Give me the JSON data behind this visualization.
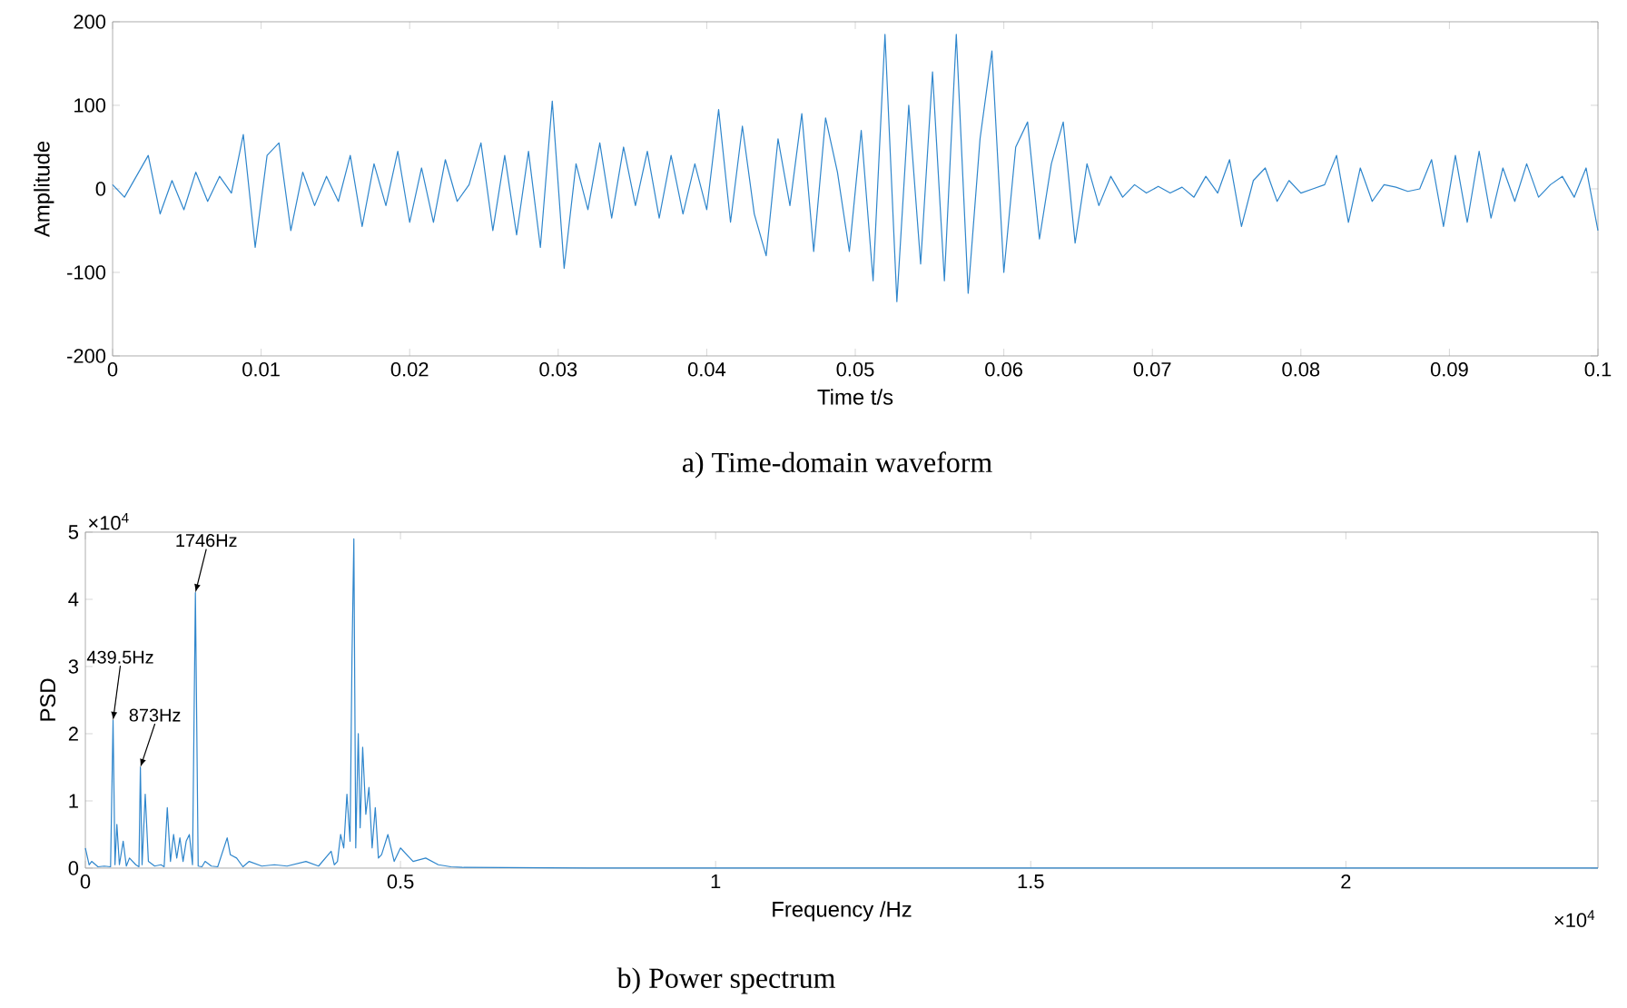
{
  "chart_data": [
    {
      "type": "line",
      "title": "a) Time-domain waveform",
      "xlabel": "Time t/s",
      "ylabel": "Amplitude",
      "color": "#2f86cc",
      "xlim": [
        0,
        0.1
      ],
      "ylim": [
        -200,
        200
      ],
      "xticks": [
        0,
        0.01,
        0.02,
        0.03,
        0.04,
        0.05,
        0.06,
        0.07,
        0.08,
        0.09,
        0.1
      ],
      "yticks": [
        -200,
        -100,
        0,
        100,
        200
      ],
      "x": [
        0,
        0.0008,
        0.0016,
        0.0024,
        0.0032,
        0.004,
        0.0048,
        0.0056,
        0.0064,
        0.0072,
        0.008,
        0.0088,
        0.0096,
        0.0104,
        0.0112,
        0.012,
        0.0128,
        0.0136,
        0.0144,
        0.0152,
        0.016,
        0.0168,
        0.0176,
        0.0184,
        0.0192,
        0.02,
        0.0208,
        0.0216,
        0.0224,
        0.0232,
        0.024,
        0.0248,
        0.0256,
        0.0264,
        0.0272,
        0.028,
        0.0288,
        0.0296,
        0.0304,
        0.0312,
        0.032,
        0.0328,
        0.0336,
        0.0344,
        0.0352,
        0.036,
        0.0368,
        0.0376,
        0.0384,
        0.0392,
        0.04,
        0.0408,
        0.0416,
        0.0424,
        0.0432,
        0.044,
        0.0448,
        0.0456,
        0.0464,
        0.0472,
        0.048,
        0.0488,
        0.0496,
        0.0504,
        0.0512,
        0.052,
        0.0528,
        0.0536,
        0.0544,
        0.0552,
        0.056,
        0.0568,
        0.0576,
        0.0584,
        0.0592,
        0.06,
        0.0608,
        0.0616,
        0.0624,
        0.0632,
        0.064,
        0.0648,
        0.0656,
        0.0664,
        0.0672,
        0.068,
        0.0688,
        0.0696,
        0.0704,
        0.0712,
        0.072,
        0.0728,
        0.0736,
        0.0744,
        0.0752,
        0.076,
        0.0768,
        0.0776,
        0.0784,
        0.0792,
        0.08,
        0.0808,
        0.0816,
        0.0824,
        0.0832,
        0.084,
        0.0848,
        0.0856,
        0.0864,
        0.0872,
        0.088,
        0.0888,
        0.0896,
        0.0904,
        0.0912,
        0.092,
        0.0928,
        0.0936,
        0.0944,
        0.0952,
        0.096,
        0.0968,
        0.0976,
        0.0984,
        0.0992,
        0.1
      ],
      "values": [
        5,
        -10,
        15,
        40,
        -30,
        10,
        -25,
        20,
        -15,
        15,
        -5,
        65,
        -70,
        40,
        55,
        -50,
        20,
        -20,
        15,
        -15,
        40,
        -45,
        30,
        -20,
        45,
        -40,
        25,
        -40,
        35,
        -15,
        5,
        55,
        -50,
        40,
        -55,
        45,
        -70,
        105,
        -95,
        30,
        -25,
        55,
        -35,
        50,
        -20,
        45,
        -35,
        40,
        -30,
        30,
        -25,
        95,
        -40,
        75,
        -30,
        -80,
        60,
        -20,
        90,
        -75,
        85,
        20,
        -75,
        70,
        -110,
        185,
        -135,
        100,
        -90,
        140,
        -110,
        185,
        -125,
        60,
        165,
        -100,
        50,
        80,
        -60,
        30,
        80,
        -65,
        30,
        -20,
        15,
        -10,
        5,
        -5,
        3,
        -5,
        2,
        -10,
        15,
        -5,
        35,
        -45,
        10,
        25,
        -15,
        10,
        -5,
        0,
        5,
        40,
        -40,
        25,
        -15,
        5,
        2,
        -3,
        0,
        35,
        -45,
        40,
        -40,
        45,
        -35,
        25,
        -15,
        30,
        -10,
        5,
        15,
        -10,
        25,
        -50
      ]
    },
    {
      "type": "line",
      "title": "b) Power spectrum",
      "xlabel": "Frequency /Hz",
      "ylabel": "PSD",
      "color": "#2f86cc",
      "xlim": [
        0,
        2.4
      ],
      "ylim": [
        0,
        5
      ],
      "xticks": [
        0,
        0.5,
        1,
        1.5,
        2
      ],
      "yticks": [
        0,
        1,
        2,
        3,
        4,
        5
      ],
      "x": [
        0,
        0.006,
        0.01,
        0.02,
        0.03,
        0.04,
        0.04395,
        0.047,
        0.05,
        0.054,
        0.06,
        0.065,
        0.07,
        0.08,
        0.085,
        0.0873,
        0.09,
        0.095,
        0.1,
        0.11,
        0.12,
        0.125,
        0.13,
        0.135,
        0.14,
        0.145,
        0.15,
        0.155,
        0.16,
        0.165,
        0.17,
        0.1746,
        0.179,
        0.185,
        0.19,
        0.2,
        0.21,
        0.225,
        0.23,
        0.24,
        0.25,
        0.26,
        0.28,
        0.3,
        0.32,
        0.35,
        0.37,
        0.39,
        0.395,
        0.4,
        0.405,
        0.41,
        0.415,
        0.42,
        0.423,
        0.426,
        0.429,
        0.433,
        0.436,
        0.44,
        0.445,
        0.45,
        0.455,
        0.46,
        0.465,
        0.47,
        0.48,
        0.49,
        0.5,
        0.52,
        0.54,
        0.56,
        0.58,
        0.6,
        0.8,
        2.4
      ],
      "values": [
        0.3,
        0.05,
        0.1,
        0.02,
        0.03,
        0.02,
        2.2,
        0.05,
        0.65,
        0.05,
        0.4,
        0.03,
        0.15,
        0.05,
        0.02,
        1.5,
        0.05,
        1.1,
        0.1,
        0.03,
        0.05,
        0.02,
        0.9,
        0.1,
        0.5,
        0.15,
        0.45,
        0.1,
        0.4,
        0.5,
        0.05,
        4.1,
        0.03,
        0.02,
        0.1,
        0.03,
        0.02,
        0.45,
        0.2,
        0.15,
        0.02,
        0.1,
        0.03,
        0.05,
        0.03,
        0.1,
        0.03,
        0.25,
        0.05,
        0.1,
        0.5,
        0.3,
        1.1,
        0.4,
        3.1,
        4.9,
        0.3,
        2.0,
        0.6,
        1.8,
        0.8,
        1.2,
        0.3,
        0.9,
        0.15,
        0.2,
        0.5,
        0.1,
        0.3,
        0.1,
        0.15,
        0.05,
        0.02,
        0.01,
        0,
        0
      ],
      "annotations": [
        {
          "text": "439.5Hz",
          "x": 0.04395,
          "y": 2.2
        },
        {
          "text": "873Hz",
          "x": 0.0873,
          "y": 1.5
        },
        {
          "text": "1746Hz",
          "x": 0.1746,
          "y": 4.1
        },
        "×10$^{4}$",
        "×10$^{4}$"
      ]
    }
  ]
}
